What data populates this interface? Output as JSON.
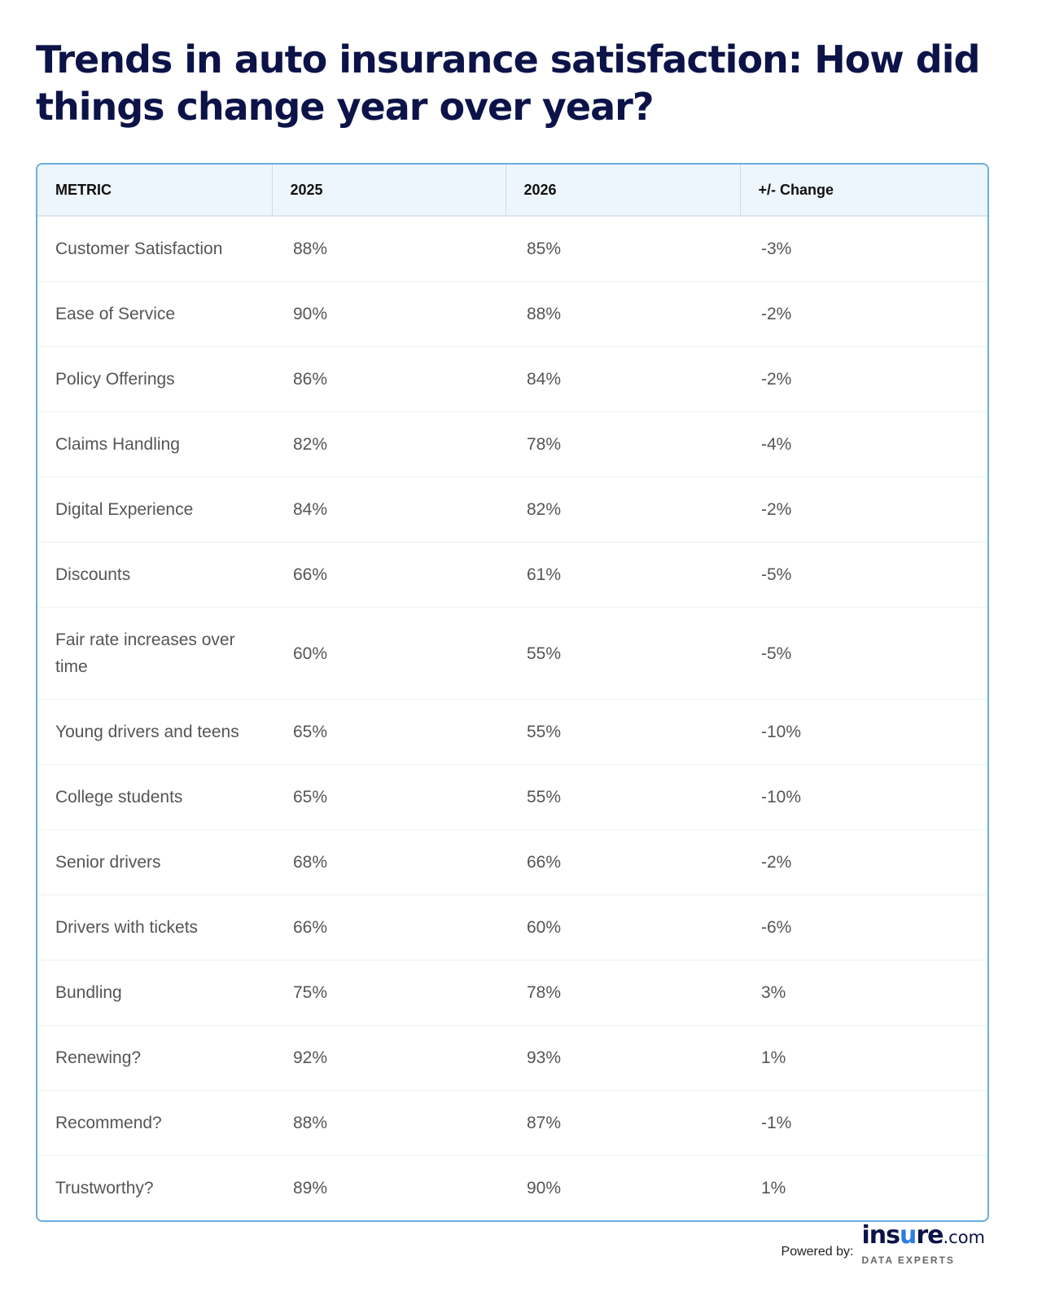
{
  "chart_data": {
    "type": "table",
    "title": "Trends in auto insurance satisfaction: How did things change year over year?",
    "columns": [
      "METRIC",
      "2025",
      "2026",
      "+/- Change"
    ],
    "rows": [
      [
        "Customer Satisfaction",
        "88%",
        "85%",
        "-3%"
      ],
      [
        "Ease of Service",
        "90%",
        "88%",
        "-2%"
      ],
      [
        "Policy Offerings",
        "86%",
        "84%",
        "-2%"
      ],
      [
        "Claims Handling",
        "82%",
        "78%",
        "-4%"
      ],
      [
        "Digital Experience",
        "84%",
        "82%",
        "-2%"
      ],
      [
        "Discounts",
        "66%",
        "61%",
        "-5%"
      ],
      [
        "Fair rate increases over time",
        "60%",
        "55%",
        "-5%"
      ],
      [
        "Young drivers and teens",
        "65%",
        "55%",
        "-10%"
      ],
      [
        "College students",
        "65%",
        "55%",
        "-10%"
      ],
      [
        "Senior drivers",
        "68%",
        "66%",
        "-2%"
      ],
      [
        "Drivers with tickets",
        "66%",
        "60%",
        "-6%"
      ],
      [
        "Bundling",
        "75%",
        "78%",
        "3%"
      ],
      [
        "Renewing?",
        "92%",
        "93%",
        "1%"
      ],
      [
        "Recommend?",
        "88%",
        "87%",
        "-1%"
      ],
      [
        "Trustworthy?",
        "89%",
        "90%",
        "1%"
      ]
    ]
  },
  "footer": {
    "powered_by": "Powered by:",
    "logo": {
      "text_a": "ins",
      "text_u": "u",
      "text_b": "re",
      "text_com": ".com",
      "tagline": "DATA EXPERTS"
    }
  },
  "colors": {
    "title": "#0b1348",
    "border": "#6aaee0",
    "header_bg": "#eef6fd",
    "accent": "#2a7de1"
  }
}
